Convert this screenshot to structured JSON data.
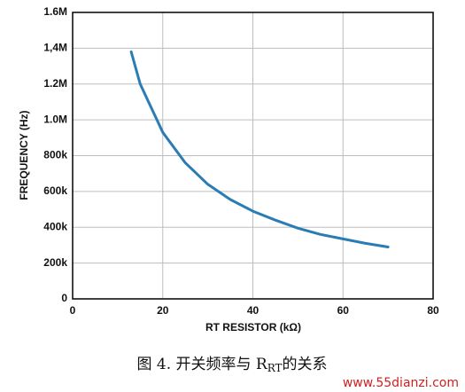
{
  "chart_data": {
    "type": "line",
    "x_label": "RT RESISTOR (kΩ)",
    "y_label": "FREQUENCY (Hz)",
    "x": [
      13,
      15,
      20,
      25,
      30,
      35,
      40,
      45,
      50,
      55,
      60,
      65,
      70
    ],
    "values": [
      1380000,
      1200000,
      930000,
      760000,
      640000,
      555000,
      490000,
      440000,
      395000,
      360000,
      335000,
      310000,
      290000
    ],
    "color": "#2b7bb4",
    "xlim": [
      0,
      80
    ],
    "xticks": [
      0,
      20,
      40,
      60,
      80
    ],
    "ylim": [
      0,
      1600000
    ],
    "yticks": [
      0,
      {
        "value": 200000,
        "label": "200k"
      },
      {
        "value": 400000,
        "label": "400k"
      },
      {
        "value": 600000,
        "label": "600k"
      },
      {
        "value": 800000,
        "label": "800k"
      },
      {
        "value": 1000000,
        "label": "1.0M"
      },
      {
        "value": 1200000,
        "label": "1.2M"
      },
      {
        "value": 1400000,
        "label": "1,4M"
      },
      {
        "value": 1600000,
        "label": "1.6M"
      }
    ],
    "grid": true
  },
  "caption": {
    "text": "图 4. 开关频率与 R",
    "subscript": "RT",
    "suffix": "的关系"
  },
  "watermark": "www.55dianzi.com"
}
